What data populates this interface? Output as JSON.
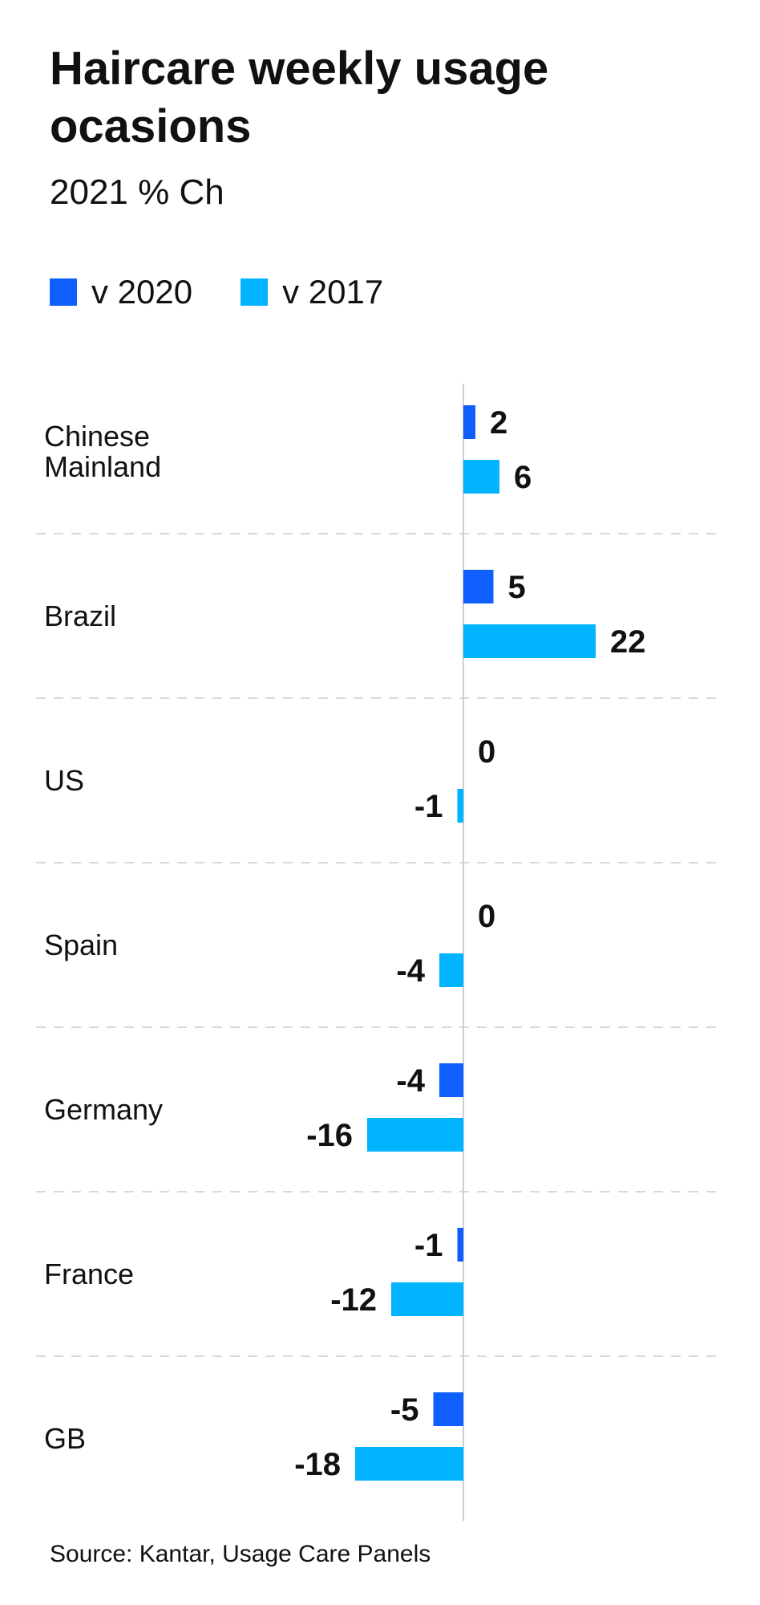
{
  "title": "Haircare weekly usage ocasions",
  "subtitle": "2021 % Ch",
  "legend": [
    {
      "name": "v 2020",
      "color": "#0f5fff"
    },
    {
      "name": "v 2017",
      "color": "#00b4ff"
    }
  ],
  "source": "Source: Kantar, Usage Care Panels",
  "chart_data": {
    "type": "bar",
    "orientation": "horizontal",
    "title": "Haircare weekly usage ocasions",
    "subtitle": "2021 % Ch",
    "categories": [
      [
        "Chinese",
        "Mainland"
      ],
      [
        "Brazil"
      ],
      [
        "US"
      ],
      [
        "Spain"
      ],
      [
        "Germany"
      ],
      [
        "France"
      ],
      [
        "GB"
      ]
    ],
    "series": [
      {
        "name": "v 2020",
        "color": "#0f5fff",
        "values": [
          2,
          5,
          0,
          0,
          -4,
          -1,
          -5
        ]
      },
      {
        "name": "v 2017",
        "color": "#00b4ff",
        "values": [
          6,
          22,
          -1,
          -4,
          -16,
          -12,
          -18
        ]
      }
    ],
    "xlim": [
      -18,
      22
    ],
    "grid": false,
    "legend_position": "top-left"
  }
}
